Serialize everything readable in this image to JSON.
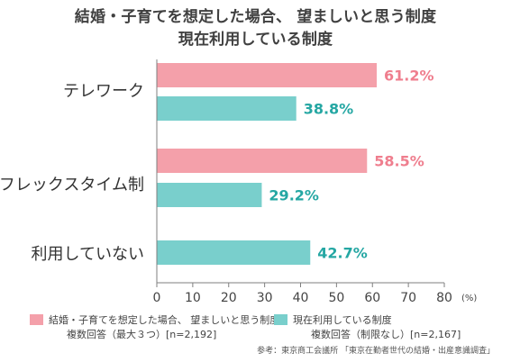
{
  "title": {
    "line1": "結婚・子育てを想定した場合、 望ましいと思う制度",
    "line2": "現在利用している制度"
  },
  "chart_data": {
    "type": "bar",
    "orientation": "horizontal",
    "categories": [
      "テレワーク",
      "フレックスタイム制",
      "利用していない"
    ],
    "series": [
      {
        "name": "結婚・子育てを想定した場合、 望ましいと思う制度",
        "color": "#f4a0aa",
        "value_label_color": "#ef7e8e",
        "values": [
          61.2,
          58.5,
          null
        ],
        "data_labels": [
          "61.2%",
          "58.5%",
          ""
        ]
      },
      {
        "name": "現在利用している制度",
        "color": "#79cfcc",
        "value_label_color": "#25a7a3",
        "values": [
          38.8,
          29.2,
          42.7
        ],
        "data_labels": [
          "38.8%",
          "29.2%",
          "42.7%"
        ]
      }
    ],
    "xlim": [
      0,
      80
    ],
    "ticks": [
      0,
      10,
      20,
      30,
      40,
      50,
      60,
      70,
      80
    ],
    "tick_labels": [
      "0",
      "10",
      "20",
      "30",
      "40",
      "50",
      "60",
      "70",
      "80"
    ],
    "unit_label": "(%)",
    "grid": false
  },
  "legend": {
    "items": [
      {
        "label": "結婚・子育てを想定した場合、 望ましいと思う制度",
        "sub": "複数回答（最大３つ）[n=2,192]",
        "color": "#f4a0aa"
      },
      {
        "label": "現在利用している制度",
        "sub": "複数回答（制限なし）[n=2,167]",
        "color": "#79cfcc"
      }
    ]
  },
  "source": "参考：東京商工会議所 「東京在勤者世代の結婚・出産意識調査」"
}
